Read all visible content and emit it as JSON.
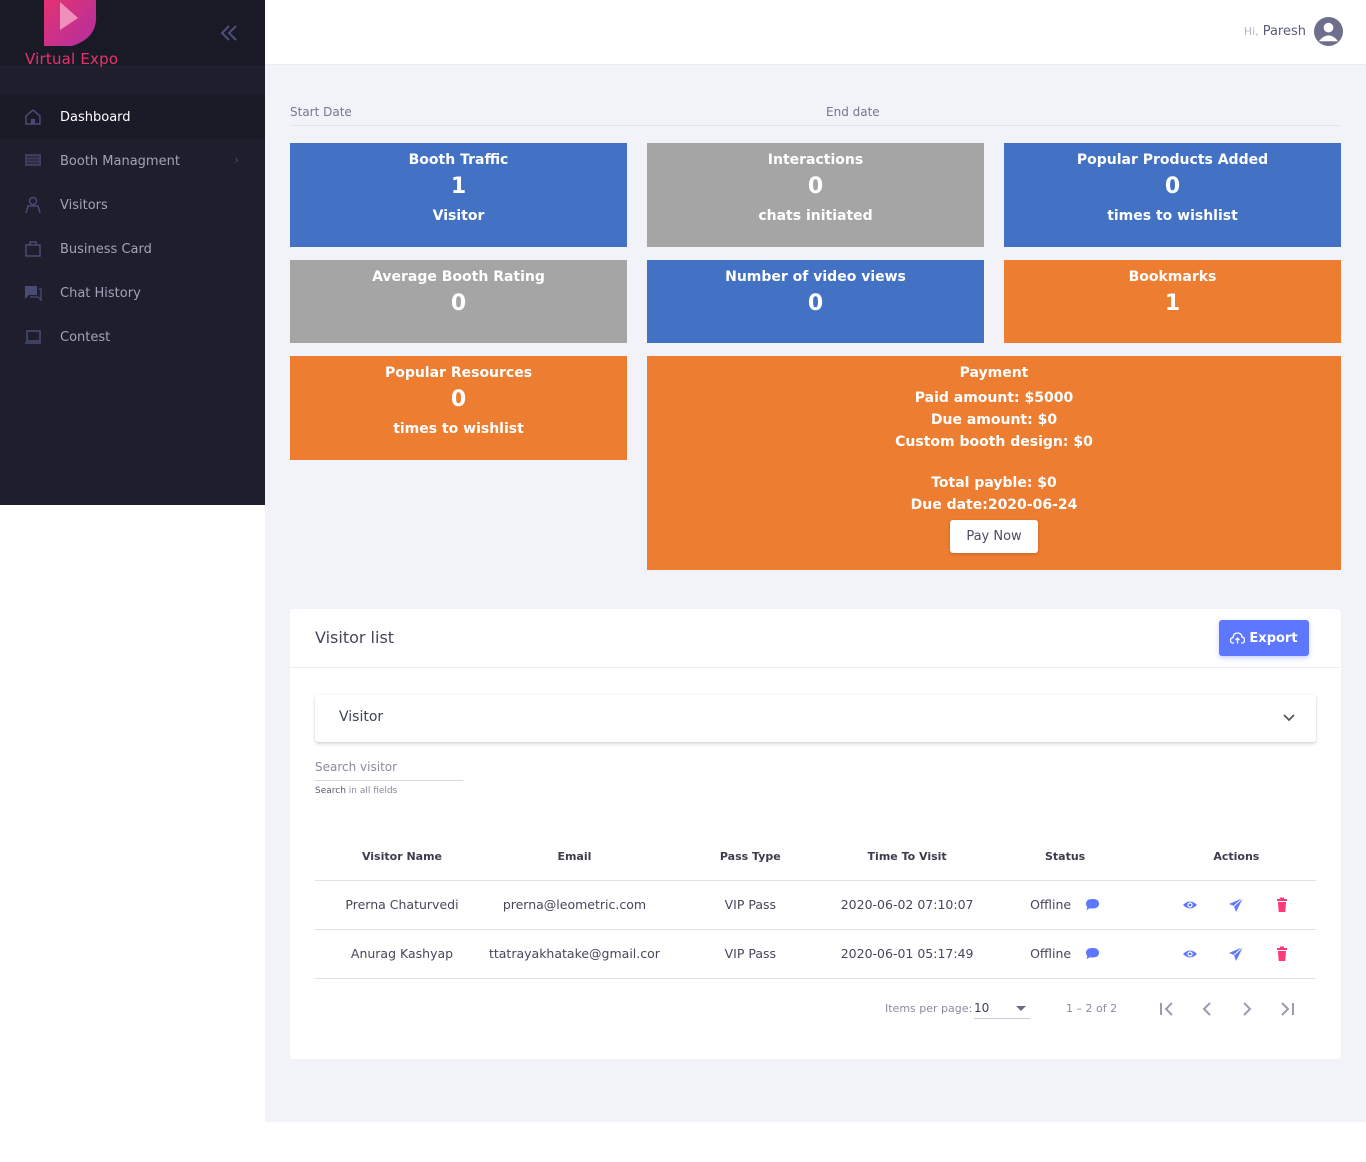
{
  "app": {
    "logo_text": "Virtual Expo"
  },
  "colors": {
    "sidebar_bg": "#1e1e2d",
    "accent": "#5d78ff",
    "blue_card": "#4372c4",
    "gray_card": "#a5a5a5",
    "orange_card": "#ed7d31",
    "delete": "#fd397a",
    "brand": "#e8336e"
  },
  "sidebar": {
    "items": [
      {
        "label": "Dashboard",
        "icon": "home-icon",
        "active": true
      },
      {
        "label": "Booth Managment",
        "icon": "booth-icon",
        "has_submenu": true
      },
      {
        "label": "Visitors",
        "icon": "visitors-icon"
      },
      {
        "label": "Business Card",
        "icon": "business-card-icon"
      },
      {
        "label": "Chat History",
        "icon": "chat-icon"
      },
      {
        "label": "Contest",
        "icon": "contest-icon"
      }
    ]
  },
  "header": {
    "greeting": "Hi,",
    "user_name": "Paresh"
  },
  "filters": {
    "start_date_label": "Start Date",
    "end_date_label": "End date"
  },
  "cards": {
    "booth_traffic": {
      "title": "Booth Traffic",
      "value": "1",
      "sub": "Visitor"
    },
    "interactions": {
      "title": "Interactions",
      "value": "0",
      "sub": "chats initiated"
    },
    "popular_products": {
      "title": "Popular Products Added",
      "value": "0",
      "sub": "times to wishlist"
    },
    "avg_rating": {
      "title": "Average Booth Rating",
      "value": "0"
    },
    "video_views": {
      "title": "Number of video views",
      "value": "0"
    },
    "bookmarks": {
      "title": "Bookmarks",
      "value": "1"
    },
    "popular_resources": {
      "title": "Popular Resources",
      "value": "0",
      "sub": "times to wishlist"
    }
  },
  "payment": {
    "title": "Payment",
    "paid": "Paid amount: $5000",
    "due": "Due amount: $0",
    "custom": "Custom booth design: $0",
    "total": "Total payble: $0",
    "due_date": "Due date:2020-06-24",
    "button": "Pay Now"
  },
  "visitor_list": {
    "title": "Visitor list",
    "export_label": "Export",
    "accordion_label": "Visitor",
    "search_placeholder": "Search visitor",
    "search_hint_bold": "Search",
    "search_hint_rest": " in all fields",
    "columns": [
      "Visitor Name",
      "Email",
      "Pass Type",
      "Time To Visit",
      "Status",
      "Actions"
    ],
    "rows": [
      {
        "name": "Prerna Chaturvedi",
        "email": "prerna@leometric.com",
        "pass": "VIP Pass",
        "time": "2020-06-02 07:10:07",
        "status": "Offline"
      },
      {
        "name": "Anurag Kashyap",
        "email": "ttatrayakhatake@gmail.cor",
        "pass": "VIP Pass",
        "time": "2020-06-01 05:17:49",
        "status": "Offline"
      }
    ],
    "paginator": {
      "items_per_page_label": "Items per page:",
      "page_size": "10",
      "range": "1 – 2 of 2"
    }
  }
}
